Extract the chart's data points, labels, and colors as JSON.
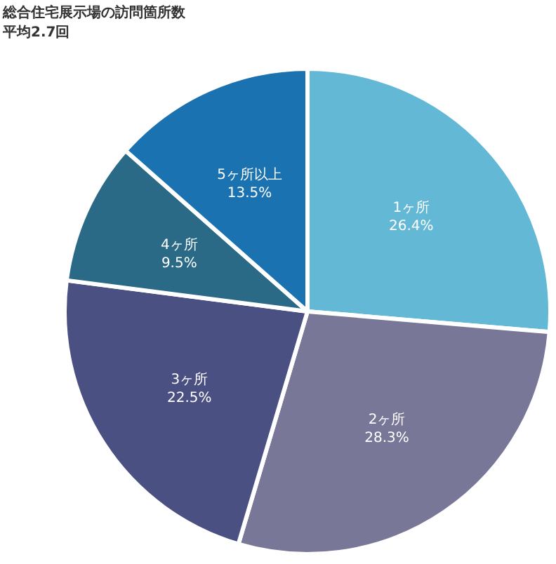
{
  "chart_data": {
    "type": "pie",
    "title": "総合住宅展示場の訪問箇所数",
    "subtitle": "平均2.7回",
    "categories": [
      "1ヶ所",
      "2ヶ所",
      "3ヶ所",
      "4ヶ所",
      "5ヶ所以上"
    ],
    "values": [
      26.4,
      28.3,
      22.5,
      9.5,
      13.5
    ],
    "value_labels": [
      "26.4%",
      "28.3%",
      "22.5%",
      "9.5%",
      "13.5%"
    ],
    "colors": [
      "#63b8d6",
      "#787797",
      "#4a5082",
      "#2a6a87",
      "#1a72b0"
    ]
  }
}
